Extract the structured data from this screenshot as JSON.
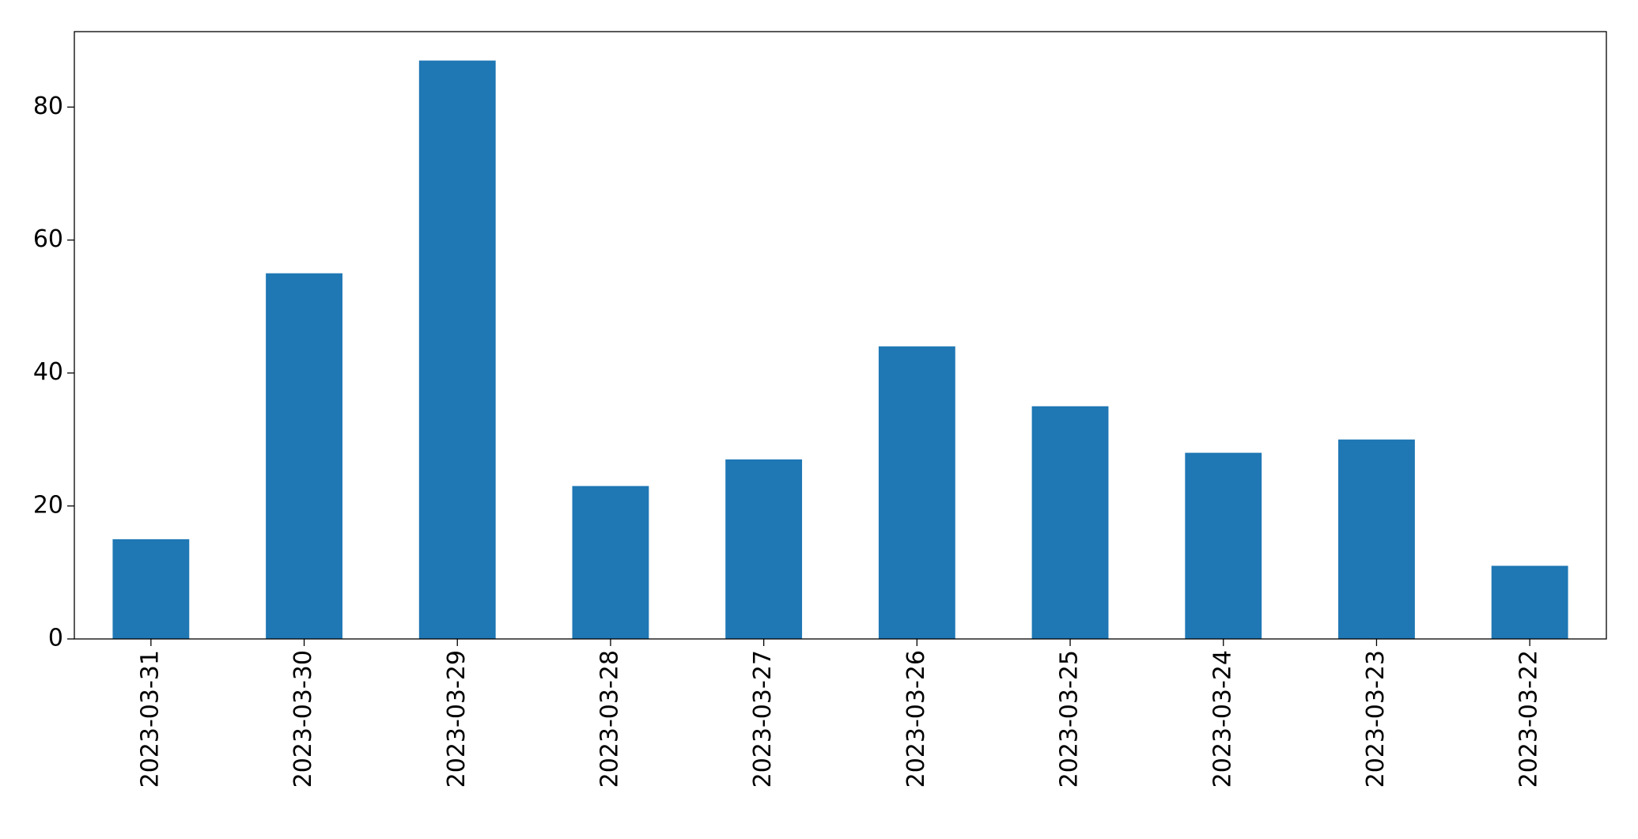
{
  "chart_data": {
    "type": "bar",
    "categories": [
      "2023-03-31",
      "2023-03-30",
      "2023-03-29",
      "2023-03-28",
      "2023-03-27",
      "2023-03-26",
      "2023-03-25",
      "2023-03-24",
      "2023-03-23",
      "2023-03-22"
    ],
    "values": [
      15,
      55,
      87,
      23,
      27,
      44,
      35,
      28,
      30,
      11
    ],
    "color": "#1f77b4",
    "ylim": [
      0,
      91.35
    ],
    "yticks": [
      0,
      20,
      40,
      60,
      80
    ],
    "grid": false
  }
}
